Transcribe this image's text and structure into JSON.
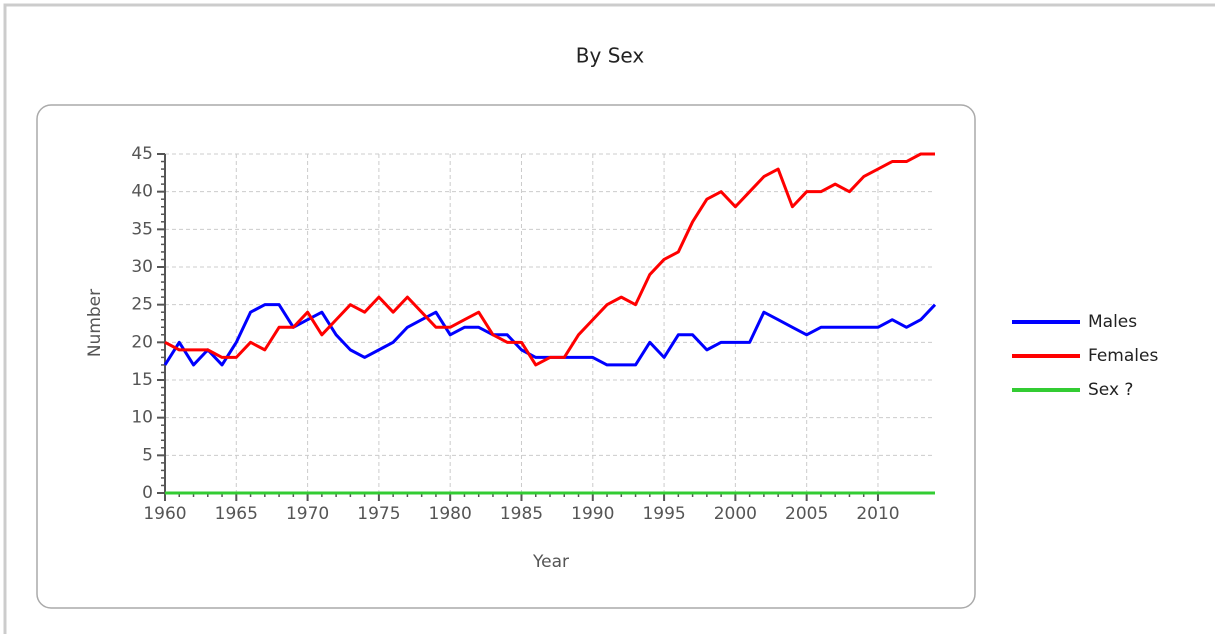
{
  "chart_data": {
    "type": "line",
    "title": "By Sex",
    "xlabel": "Year",
    "ylabel": "Number",
    "x": [
      1960,
      1961,
      1962,
      1963,
      1964,
      1965,
      1966,
      1967,
      1968,
      1969,
      1970,
      1971,
      1972,
      1973,
      1974,
      1975,
      1976,
      1977,
      1978,
      1979,
      1980,
      1981,
      1982,
      1983,
      1984,
      1985,
      1986,
      1987,
      1988,
      1989,
      1990,
      1991,
      1992,
      1993,
      1994,
      1995,
      1996,
      1997,
      1998,
      1999,
      2000,
      2001,
      2002,
      2003,
      2004,
      2005,
      2006,
      2007,
      2008,
      2009,
      2010,
      2011,
      2012,
      2013,
      2014
    ],
    "series": [
      {
        "name": "Males",
        "color": "#0000ff",
        "values": [
          17,
          20,
          17,
          19,
          17,
          20,
          24,
          25,
          25,
          22,
          23,
          24,
          21,
          19,
          18,
          19,
          20,
          22,
          23,
          24,
          21,
          22,
          22,
          21,
          21,
          19,
          18,
          18,
          18,
          18,
          18,
          17,
          17,
          17,
          20,
          18,
          21,
          21,
          19,
          20,
          20,
          20,
          24,
          23,
          22,
          21,
          22,
          22,
          22,
          22,
          22,
          23,
          22,
          23,
          25
        ]
      },
      {
        "name": "Females",
        "color": "#ff0000",
        "values": [
          20,
          19,
          19,
          19,
          18,
          18,
          20,
          19,
          22,
          22,
          24,
          21,
          23,
          25,
          24,
          26,
          24,
          26,
          24,
          22,
          22,
          23,
          24,
          21,
          20,
          20,
          17,
          18,
          18,
          21,
          23,
          25,
          26,
          25,
          29,
          31,
          32,
          36,
          39,
          40,
          38,
          40,
          42,
          43,
          38,
          40,
          40,
          41,
          40,
          42,
          43,
          44,
          44,
          45,
          45
        ]
      },
      {
        "name": "Sex ?",
        "color": "#33cc33",
        "values": [
          0,
          0,
          0,
          0,
          0,
          0,
          0,
          0,
          0,
          0,
          0,
          0,
          0,
          0,
          0,
          0,
          0,
          0,
          0,
          0,
          0,
          0,
          0,
          0,
          0,
          0,
          0,
          0,
          0,
          0,
          0,
          0,
          0,
          0,
          0,
          0,
          0,
          0,
          0,
          0,
          0,
          0,
          0,
          0,
          0,
          0,
          0,
          0,
          0,
          0,
          0,
          0,
          0,
          0,
          0
        ]
      }
    ],
    "xlim": [
      1960,
      2014
    ],
    "xticks": [
      1960,
      1965,
      1970,
      1975,
      1980,
      1985,
      1990,
      1995,
      2000,
      2005,
      2010
    ],
    "ylim": [
      0,
      45
    ],
    "yticks": [
      0,
      5,
      10,
      15,
      20,
      25,
      30,
      35,
      40,
      45
    ],
    "grid": true,
    "legend": "right"
  }
}
